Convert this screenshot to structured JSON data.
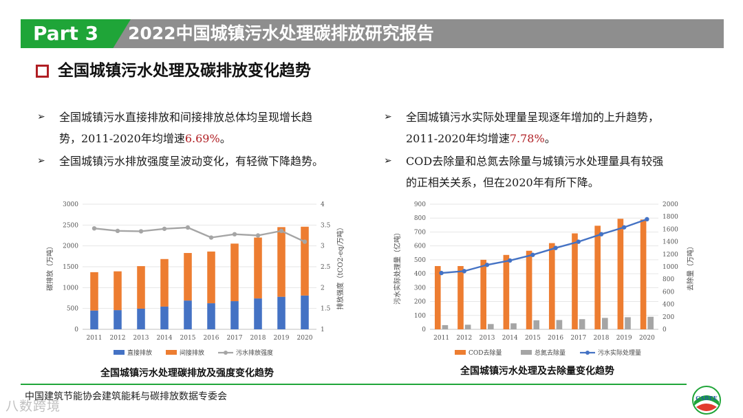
{
  "header": {
    "part_label": "Part 3",
    "report_title": "2022中国城镇污水处理碳排放研究报告"
  },
  "section": {
    "title": "全国城镇污水处理及碳排放变化趋势"
  },
  "bullets_left": [
    {
      "line1": "全国城镇污水直接排放和间接排放总体均呈现增长趋",
      "line2_pre": "势，2011-2020年均增速",
      "line2_hl": "6.69%",
      "line2_post": "。"
    },
    {
      "line1": "全国城镇污水排放强度呈波动变化，有轻微下降趋势。"
    }
  ],
  "bullets_right": [
    {
      "line1": "全国城镇污水实际处理量呈现逐年增加的上升趋势，",
      "line2_pre": "2011-2020年均增速",
      "line2_hl": "7.78%",
      "line2_post": "。"
    },
    {
      "line1": "COD去除量和总氮去除量与城镇污水处理量具有较强",
      "line2": "的正相关关系，但在2020年有所下降。"
    }
  ],
  "colors": {
    "green": "#1fa538",
    "header_gray": "#8e8e8e",
    "accent_red": "#b01e23",
    "blue": "#4472c4",
    "orange": "#ed7d31",
    "gray": "#a5a5a5",
    "line_blue": "#4472c4"
  },
  "chart_data": [
    {
      "type": "bar",
      "stacked": true,
      "title": "全国城镇污水处理碳排放及强度变化趋势",
      "categories": [
        "2011",
        "2012",
        "2013",
        "2014",
        "2015",
        "2016",
        "2017",
        "2018",
        "2019",
        "2020"
      ],
      "ylabel": "碳排放（万吨）",
      "y2label": "排放强度（tCO2-eq/万吨）",
      "ylim": [
        0,
        3000
      ],
      "yticks": [
        "0",
        "500",
        "1000",
        "1500",
        "2000",
        "2500",
        "3000"
      ],
      "y2lim": [
        1,
        4
      ],
      "y2ticks": [
        "1",
        "1.5",
        "2",
        "2.5",
        "3",
        "3.5",
        "4"
      ],
      "series": [
        {
          "name": "直接排放",
          "type": "bar",
          "values": [
            450,
            460,
            495,
            545,
            690,
            625,
            675,
            740,
            780,
            810
          ]
        },
        {
          "name": "间接排放",
          "type": "bar",
          "values": [
            920,
            930,
            1020,
            1140,
            1140,
            1240,
            1380,
            1460,
            1670,
            1650
          ]
        },
        {
          "name": "污水排放强度",
          "type": "line",
          "axis": "right",
          "values": [
            3.42,
            3.36,
            3.35,
            3.41,
            3.44,
            3.2,
            3.28,
            3.25,
            3.36,
            3.1
          ]
        }
      ],
      "legend": "bottom"
    },
    {
      "type": "bar",
      "title": "全国城镇污水处理及去除量变化趋势",
      "categories": [
        "2011",
        "2012",
        "2013",
        "2014",
        "2015",
        "2016",
        "2017",
        "2018",
        "2019",
        "2020"
      ],
      "ylabel": "污水实际处理量（亿吨）",
      "y2label": "去除量（万吨）",
      "ylim": [
        0,
        900
      ],
      "yticks": [
        "0",
        "100",
        "200",
        "300",
        "400",
        "500",
        "600",
        "700",
        "800",
        "900"
      ],
      "y2lim": [
        0,
        2000
      ],
      "y2ticks": [
        "0",
        "200",
        "400",
        "600",
        "800",
        "1000",
        "1200",
        "1400",
        "1600",
        "1800",
        "2000"
      ],
      "series": [
        {
          "name": "COD去除量",
          "type": "bar",
          "values": [
            455,
            455,
            500,
            535,
            565,
            620,
            690,
            745,
            795,
            790
          ]
        },
        {
          "name": "总氮去除量",
          "type": "bar",
          "values": [
            30,
            33,
            38,
            43,
            65,
            67,
            73,
            82,
            87,
            90
          ]
        },
        {
          "name": "污水实际处理量",
          "type": "line",
          "axis": "right",
          "values": [
            900,
            930,
            1030,
            1100,
            1190,
            1300,
            1400,
            1520,
            1630,
            1760
          ]
        }
      ],
      "legend": "bottom"
    }
  ],
  "footer": {
    "org": "中国建筑节能协会建筑能耗与碳排放数据专委会",
    "watermark": "八数跨境",
    "logo_text": "CABEE"
  }
}
